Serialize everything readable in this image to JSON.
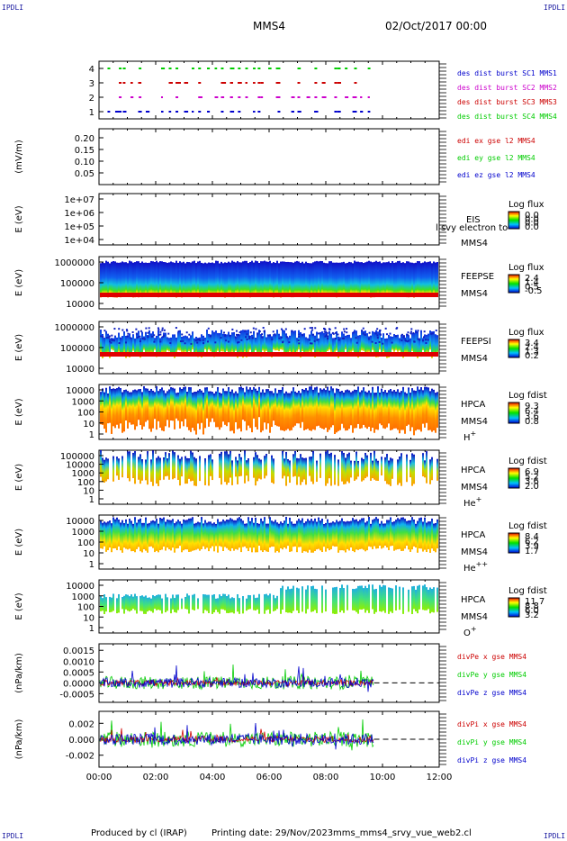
{
  "corners": {
    "tl": "IPDLI",
    "tr": "IPDLI",
    "bl": "IPDLI",
    "br": "IPDLI"
  },
  "header": {
    "mission": "MMS4",
    "date": "02/Oct/2017 00:00"
  },
  "footer": {
    "produced": "Produced by cl (IRAP)",
    "printing": "Printing date: 29/Nov/2023",
    "file": "mms_mms4_srvy_vue_web2.cl"
  },
  "colors": {
    "sc1": "#0000cc",
    "sc2": "#cc00cc",
    "sc3": "#cc0000",
    "sc4": "#00cc00",
    "x": "#cc0000",
    "y": "#00cc00",
    "z": "#0000cc"
  },
  "chart_data": {
    "type": "multi-panel time series",
    "x_axis": {
      "ticks": [
        "00:00",
        "02:00",
        "04:00",
        "06:00",
        "08:00",
        "10:00",
        "12:00"
      ],
      "range_hours": [
        0,
        12
      ]
    },
    "panels": [
      {
        "id": "burst",
        "type": "scatter",
        "y_ticks": [
          "4",
          "3",
          "2",
          "1"
        ],
        "ylim": [
          0.5,
          4.5
        ],
        "legend": [
          "des dist burst SC1 MMS1",
          "des dist burst SC2 MMS2",
          "des dist burst SC3 MMS3",
          "des dist burst SC4 MMS4"
        ],
        "series": [
          {
            "level": 1,
            "x": [
              0.7,
              1.4,
              2.7,
              3.5,
              4.3,
              4.9,
              5.6,
              6.3,
              7.0,
              7.6,
              8.3,
              9.0
            ]
          },
          {
            "level": 2,
            "x": [
              0.7,
              1.4,
              2.7,
              3.5,
              4.3,
              4.9,
              5.6,
              6.3,
              7.0,
              7.6,
              8.3,
              9.0
            ]
          },
          {
            "level": 3,
            "x": [
              0.7,
              1.4,
              2.7,
              3.5,
              4.3,
              4.9,
              5.6,
              6.3,
              7.0,
              7.6,
              8.3,
              9.0
            ]
          },
          {
            "level": 4,
            "x": [
              0.7,
              1.4,
              2.7,
              3.5,
              4.3,
              4.9,
              5.6,
              6.3,
              7.0,
              7.6,
              8.3,
              9.0
            ]
          }
        ]
      },
      {
        "id": "edi",
        "type": "line",
        "ylabel": "(mV/m)",
        "y_ticks": [
          "0.20",
          "0.15",
          "0.10",
          "0.05"
        ],
        "ylim": [
          0.02,
          0.23
        ],
        "legend": [
          "edi ex gse l2 MMS4",
          "edi ey gse l2 MMS4",
          "edi ez gse l2 MMS4"
        ]
      },
      {
        "id": "eis",
        "type": "heatmap",
        "ylabel": "E (eV)",
        "y_ticks": [
          "1e+07",
          "1e+06",
          "1e+05",
          "1e+04"
        ],
        "labels": [
          "EIS",
          "MMS4"
        ],
        "overlay": "l svy electron to",
        "colorbar": {
          "title": "Log flux",
          "ticks": [
            "0.0",
            "0.0",
            "0.0",
            "0.0"
          ]
        }
      },
      {
        "id": "feepse",
        "type": "heatmap",
        "ylabel": "E (eV)",
        "y_ticks": [
          "1000000",
          "100000",
          "10000"
        ],
        "labels": [
          "FEEPSE",
          "MMS4"
        ],
        "colorbar": {
          "title": "Log flux",
          "ticks": [
            "2.4",
            "1.4",
            "0.5",
            "-0.5"
          ]
        }
      },
      {
        "id": "feepsi",
        "type": "heatmap",
        "ylabel": "E (eV)",
        "y_ticks": [
          "1000000",
          "100000",
          "10000"
        ],
        "labels": [
          "FEEPSI",
          "MMS4"
        ],
        "colorbar": {
          "title": "Log flux",
          "ticks": [
            "3.4",
            "2.4",
            "1.3",
            "0.2"
          ]
        }
      },
      {
        "id": "hpca_h",
        "type": "heatmap",
        "ylabel": "E (eV)",
        "y_ticks": [
          "10000",
          "1000",
          "100",
          "10",
          "1"
        ],
        "labels": [
          "HPCA",
          "MMS4"
        ],
        "species": "H",
        "species_sup": "+",
        "colorbar": {
          "title": "Log fdist",
          "ticks": [
            "9.3",
            "6.4",
            "3.6",
            "0.8"
          ]
        }
      },
      {
        "id": "hpca_he",
        "type": "heatmap",
        "ylabel": "E (eV)",
        "y_ticks": [
          "100000",
          "10000",
          "1000",
          "100",
          "10",
          "1"
        ],
        "labels": [
          "HPCA",
          "MMS4"
        ],
        "species": "He",
        "species_sup": "+",
        "colorbar": {
          "title": "Log fdist",
          "ticks": [
            "6.9",
            "5.2",
            "3.6",
            "2.0"
          ]
        }
      },
      {
        "id": "hpca_hepp",
        "type": "heatmap",
        "ylabel": "E (eV)",
        "y_ticks": [
          "10000",
          "1000",
          "100",
          "10",
          "1"
        ],
        "labels": [
          "HPCA",
          "MMS4"
        ],
        "species": "He",
        "species_sup": "++",
        "colorbar": {
          "title": "Log fdist",
          "ticks": [
            "8.4",
            "6.2",
            "3.9",
            "1.7"
          ]
        }
      },
      {
        "id": "hpca_o",
        "type": "heatmap",
        "ylabel": "E (eV)",
        "y_ticks": [
          "10000",
          "1000",
          "100",
          "10",
          "1"
        ],
        "labels": [
          "HPCA",
          "MMS4"
        ],
        "species": "O",
        "species_sup": "+",
        "colorbar": {
          "title": "Log fdist",
          "ticks": [
            "11.7",
            "8.8",
            "6.0",
            "3.2"
          ]
        }
      },
      {
        "id": "divpe",
        "type": "line",
        "ylabel": "(nPa/km)",
        "y_ticks": [
          "0.0015",
          "0.0010",
          "0.0005",
          "0.0000",
          "-0.0005"
        ],
        "ylim": [
          -0.0009,
          0.0018
        ],
        "legend": [
          "divPe x gse MMS4",
          "divPe y gse MMS4",
          "divPe z gse MMS4"
        ],
        "data_end_hours": 9.7
      },
      {
        "id": "divpi",
        "type": "line",
        "ylabel": "(nPa/km)",
        "y_ticks": [
          "0.002",
          "0.000",
          "-0.002"
        ],
        "ylim": [
          -0.0035,
          0.0035
        ],
        "legend": [
          "divPi x gse MMS4",
          "divPi y gse MMS4",
          "divPi z gse MMS4"
        ],
        "data_end_hours": 9.7
      }
    ]
  }
}
